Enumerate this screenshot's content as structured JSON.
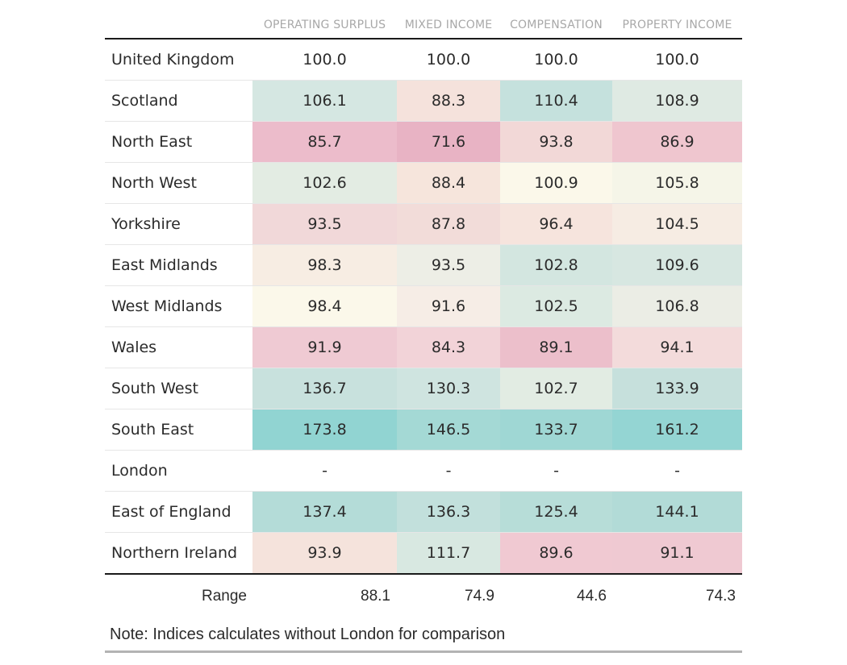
{
  "columns": [
    "OPERATING SURPLUS",
    "MIXED INCOME",
    "COMPENSATION",
    "PROPERTY INCOME"
  ],
  "rows": [
    {
      "name": "United Kingdom",
      "values": [
        "100.0",
        "100.0",
        "100.0",
        "100.0"
      ],
      "colors": [
        "#ffffff",
        "#ffffff",
        "#ffffff",
        "#ffffff"
      ]
    },
    {
      "name": "Scotland",
      "values": [
        "106.1",
        "88.3",
        "110.4",
        "108.9"
      ],
      "colors": [
        "#d5e7e2",
        "#f5e2dc",
        "#c5e1dd",
        "#dfeae3"
      ]
    },
    {
      "name": "North East",
      "values": [
        "85.7",
        "71.6",
        "93.8",
        "86.9"
      ],
      "colors": [
        "#ecbccb",
        "#e8b3c4",
        "#f2d8d7",
        "#efc6cf"
      ]
    },
    {
      "name": "North West",
      "values": [
        "102.6",
        "88.4",
        "100.9",
        "105.8"
      ],
      "colors": [
        "#e3ece3",
        "#f6e5dc",
        "#fbf8ea",
        "#f5f5e8"
      ]
    },
    {
      "name": "Yorkshire",
      "values": [
        "93.5",
        "87.8",
        "96.4",
        "104.5"
      ],
      "colors": [
        "#f1d8d9",
        "#f2dcd9",
        "#f6e4dd",
        "#f6ece3"
      ]
    },
    {
      "name": "East Midlands",
      "values": [
        "98.3",
        "93.5",
        "102.8",
        "109.6"
      ],
      "colors": [
        "#f7ede3",
        "#edeee6",
        "#d3e6e0",
        "#d7e7e1"
      ]
    },
    {
      "name": "West Midlands",
      "values": [
        "98.4",
        "91.6",
        "102.5",
        "106.8"
      ],
      "colors": [
        "#fbf8ea",
        "#f6ede6",
        "#dceae2",
        "#ebede5"
      ]
    },
    {
      "name": "Wales",
      "values": [
        "91.9",
        "84.3",
        "89.1",
        "94.1"
      ],
      "colors": [
        "#efcad3",
        "#f2d3d8",
        "#ecbfcb",
        "#f3dbdb"
      ]
    },
    {
      "name": "South West",
      "values": [
        "136.7",
        "130.3",
        "102.7",
        "133.9"
      ],
      "colors": [
        "#c8e1dd",
        "#cfe4e0",
        "#e2ece3",
        "#c6e0dc"
      ]
    },
    {
      "name": "South East",
      "values": [
        "173.8",
        "146.5",
        "133.7",
        "161.2"
      ],
      "colors": [
        "#91d4d2",
        "#a4d9d5",
        "#9fd7d4",
        "#94d5d3"
      ]
    },
    {
      "name": "London",
      "values": [
        "-",
        "-",
        "-",
        "-"
      ],
      "colors": [
        "#ffffff",
        "#ffffff",
        "#ffffff",
        "#ffffff"
      ]
    },
    {
      "name": "East of England",
      "values": [
        "137.4",
        "136.3",
        "125.4",
        "144.1"
      ],
      "colors": [
        "#b4dcd8",
        "#c2e0dc",
        "#b7ddd8",
        "#b2dbd7"
      ]
    },
    {
      "name": "Northern Ireland",
      "values": [
        "93.9",
        "111.7",
        "89.6",
        "91.1"
      ],
      "colors": [
        "#f5e3dc",
        "#d8e8e1",
        "#f0c9d2",
        "#efc9d2"
      ]
    }
  ],
  "range": {
    "label": "Range",
    "values": [
      "88.1",
      "74.9",
      "44.6",
      "74.3"
    ]
  },
  "note": "Note: Indices calculates without London for comparison"
}
